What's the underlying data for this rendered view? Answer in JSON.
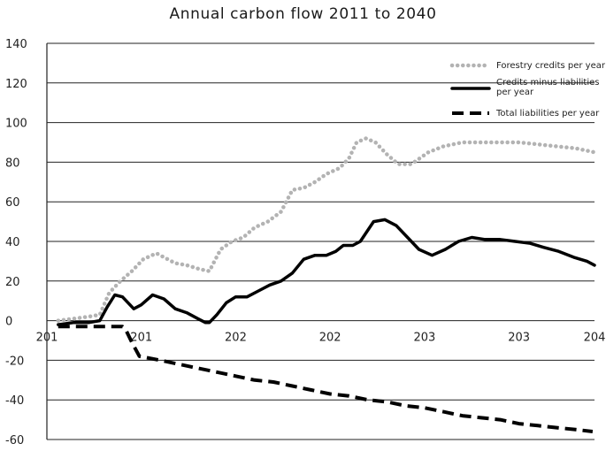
{
  "chart_data": {
    "type": "line",
    "title": "Annual carbon flow 2011 to 2040",
    "xlabel": "",
    "ylabel": "",
    "xlim": [
      2011,
      2040
    ],
    "ylim": [
      -60,
      140
    ],
    "y_ticks": [
      140,
      120,
      100,
      80,
      60,
      40,
      20,
      0,
      -20,
      -40,
      -60
    ],
    "x_ticks": [
      2011,
      2016,
      2021,
      2026,
      2031,
      2036,
      2040
    ],
    "x_tick_labels": [
      "201",
      "201",
      "202",
      "202",
      "203",
      "203",
      "204"
    ],
    "grid": "horizontal",
    "legend_position": "top-right",
    "series": [
      {
        "name": "Forestry credits per year",
        "style": "dotted",
        "color": "#b3b3b3",
        "x": [
          2011.6,
          2012.4,
          2013.2,
          2013.8,
          2014.3,
          2014.9,
          2015.5,
          2016.1,
          2016.8,
          2017.4,
          2017.8,
          2018.4,
          2019.1,
          2019.6,
          2020.2,
          2020.8,
          2021.4,
          2022.0,
          2022.7,
          2023.4,
          2024.0,
          2024.6,
          2025.2,
          2025.8,
          2026.5,
          2027.0,
          2027.4,
          2027.9,
          2028.4,
          2029.0,
          2029.6,
          2030.3,
          2031.2,
          2032.0,
          2033.0,
          2034.0,
          2035.0,
          2036.0,
          2037.0,
          2038.0,
          2039.0,
          2040.0
        ],
        "y": [
          0,
          1,
          2,
          3,
          14,
          20,
          25,
          31,
          34,
          31,
          29,
          28,
          26,
          25,
          36,
          40,
          42,
          47,
          50,
          55,
          66,
          67,
          70,
          74,
          77,
          82,
          90,
          92,
          90,
          84,
          79,
          79,
          85,
          88,
          90,
          90,
          90,
          90,
          89,
          88,
          87,
          85
        ]
      },
      {
        "name": "Credits minus liabilities per year",
        "style": "solid",
        "color": "#000000",
        "x": [
          2011.6,
          2012.4,
          2013.2,
          2013.8,
          2014.2,
          2014.6,
          2015.0,
          2015.6,
          2016.0,
          2016.6,
          2017.2,
          2017.8,
          2018.4,
          2019.0,
          2019.4,
          2019.6,
          2020.0,
          2020.5,
          2021.0,
          2021.6,
          2022.2,
          2022.8,
          2023.4,
          2024.0,
          2024.6,
          2025.2,
          2025.8,
          2026.3,
          2026.7,
          2027.2,
          2027.6,
          2028.3,
          2028.9,
          2029.5,
          2030.1,
          2030.7,
          2031.4,
          2032.1,
          2032.8,
          2033.5,
          2034.2,
          2035.0,
          2035.8,
          2036.6,
          2037.3,
          2038.1,
          2038.9,
          2039.6,
          2040.0
        ],
        "y": [
          -2,
          -1,
          -1,
          0,
          7,
          13,
          12,
          6,
          8,
          13,
          11,
          6,
          4,
          1,
          -1,
          -1,
          3,
          9,
          12,
          12,
          15,
          18,
          20,
          24,
          31,
          33,
          33,
          35,
          38,
          38,
          40,
          50,
          51,
          48,
          42,
          36,
          33,
          36,
          40,
          42,
          41,
          41,
          40,
          39,
          37,
          35,
          32,
          30,
          28
        ]
      },
      {
        "name": "Total liabilities per year",
        "style": "dashed",
        "color": "#000000",
        "x": [
          2011.6,
          2012.3,
          2013.0,
          2013.7,
          2014.5,
          2015.0,
          2015.2,
          2015.5,
          2015.9,
          2017.0,
          2018.0,
          2019.0,
          2020.0,
          2021.0,
          2022.0,
          2023.0,
          2024.0,
          2025.0,
          2026.0,
          2027.0,
          2028.0,
          2029.0,
          2030.0,
          2031.0,
          2032.0,
          2033.0,
          2034.0,
          2035.0,
          2036.0,
          2037.0,
          2038.0,
          2039.0,
          2039.9
        ],
        "y": [
          -3,
          -3,
          -3,
          -3,
          -3,
          -3,
          -5,
          -11,
          -18,
          -20,
          -22,
          -24,
          -26,
          -28,
          -30,
          -31,
          -33,
          -35,
          -37,
          -38,
          -40,
          -41,
          -43,
          -44,
          -46,
          -48,
          -49,
          -50,
          -52,
          -53,
          -54,
          -55,
          -56
        ]
      }
    ]
  }
}
